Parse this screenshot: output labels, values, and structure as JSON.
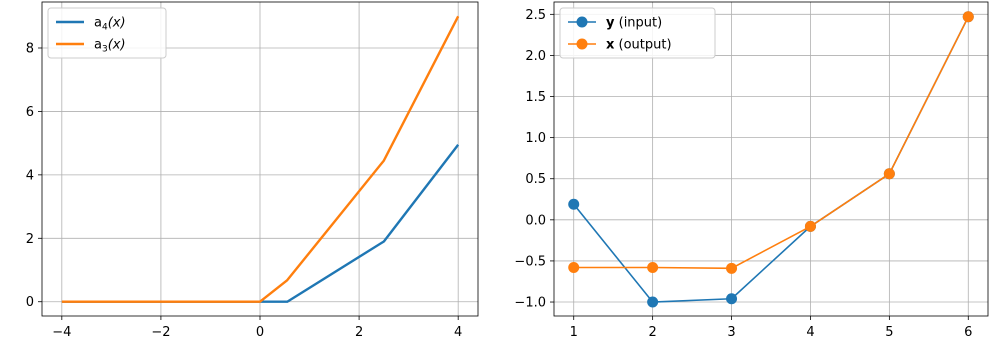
{
  "chart_data": [
    {
      "type": "line",
      "xlim": [
        -4.4,
        4.4
      ],
      "ylim": [
        -0.45,
        9.45
      ],
      "xticks": [
        -4,
        -2,
        0,
        2,
        4
      ],
      "yticks": [
        0,
        2,
        4,
        6,
        8
      ],
      "xtick_labels": [
        "−4",
        "−2",
        "0",
        "2",
        "4"
      ],
      "ytick_labels": [
        "0",
        "2",
        "4",
        "6",
        "8"
      ],
      "grid": true,
      "legend_position": "upper-left",
      "series": [
        {
          "name": "a4(x)",
          "legend_base": "a",
          "legend_sub": "4",
          "legend_rest": "(x)",
          "color": "#1f77b4",
          "x": [
            -4,
            -2,
            0,
            0.55,
            2.5,
            4
          ],
          "y": [
            0,
            0,
            0,
            0,
            1.9,
            4.95
          ]
        },
        {
          "name": "a3(x)",
          "legend_base": "a",
          "legend_sub": "3",
          "legend_rest": "(x)",
          "color": "#ff7f0e",
          "x": [
            -4,
            -2,
            0,
            0.55,
            2.5,
            4
          ],
          "y": [
            0,
            0,
            0,
            0.68,
            4.45,
            9.0
          ]
        }
      ]
    },
    {
      "type": "line",
      "xlim": [
        0.75,
        6.25
      ],
      "ylim": [
        -1.17,
        2.65
      ],
      "xticks": [
        1,
        2,
        3,
        4,
        5,
        6
      ],
      "yticks": [
        -1.0,
        -0.5,
        0.0,
        0.5,
        1.0,
        1.5,
        2.0,
        2.5
      ],
      "xtick_labels": [
        "1",
        "2",
        "3",
        "4",
        "5",
        "6"
      ],
      "ytick_labels": [
        "−1.0",
        "−0.5",
        "0.0",
        "0.5",
        "1.0",
        "1.5",
        "2.0",
        "2.5"
      ],
      "grid": true,
      "legend_position": "upper-left",
      "series": [
        {
          "name": "y (input)",
          "legend_bold": "y",
          "legend_rest": " (input)",
          "color": "#1f77b4",
          "marker": "circle",
          "x": [
            1,
            2,
            3,
            4,
            5,
            6
          ],
          "y": [
            0.19,
            -1.0,
            -0.96,
            -0.08,
            0.56,
            2.47
          ]
        },
        {
          "name": "x (output)",
          "legend_bold": "x",
          "legend_rest": " (output)",
          "color": "#ff7f0e",
          "marker": "circle",
          "x": [
            1,
            2,
            3,
            4,
            5,
            6
          ],
          "y": [
            -0.58,
            -0.58,
            -0.59,
            -0.08,
            0.56,
            2.47
          ]
        }
      ]
    }
  ]
}
